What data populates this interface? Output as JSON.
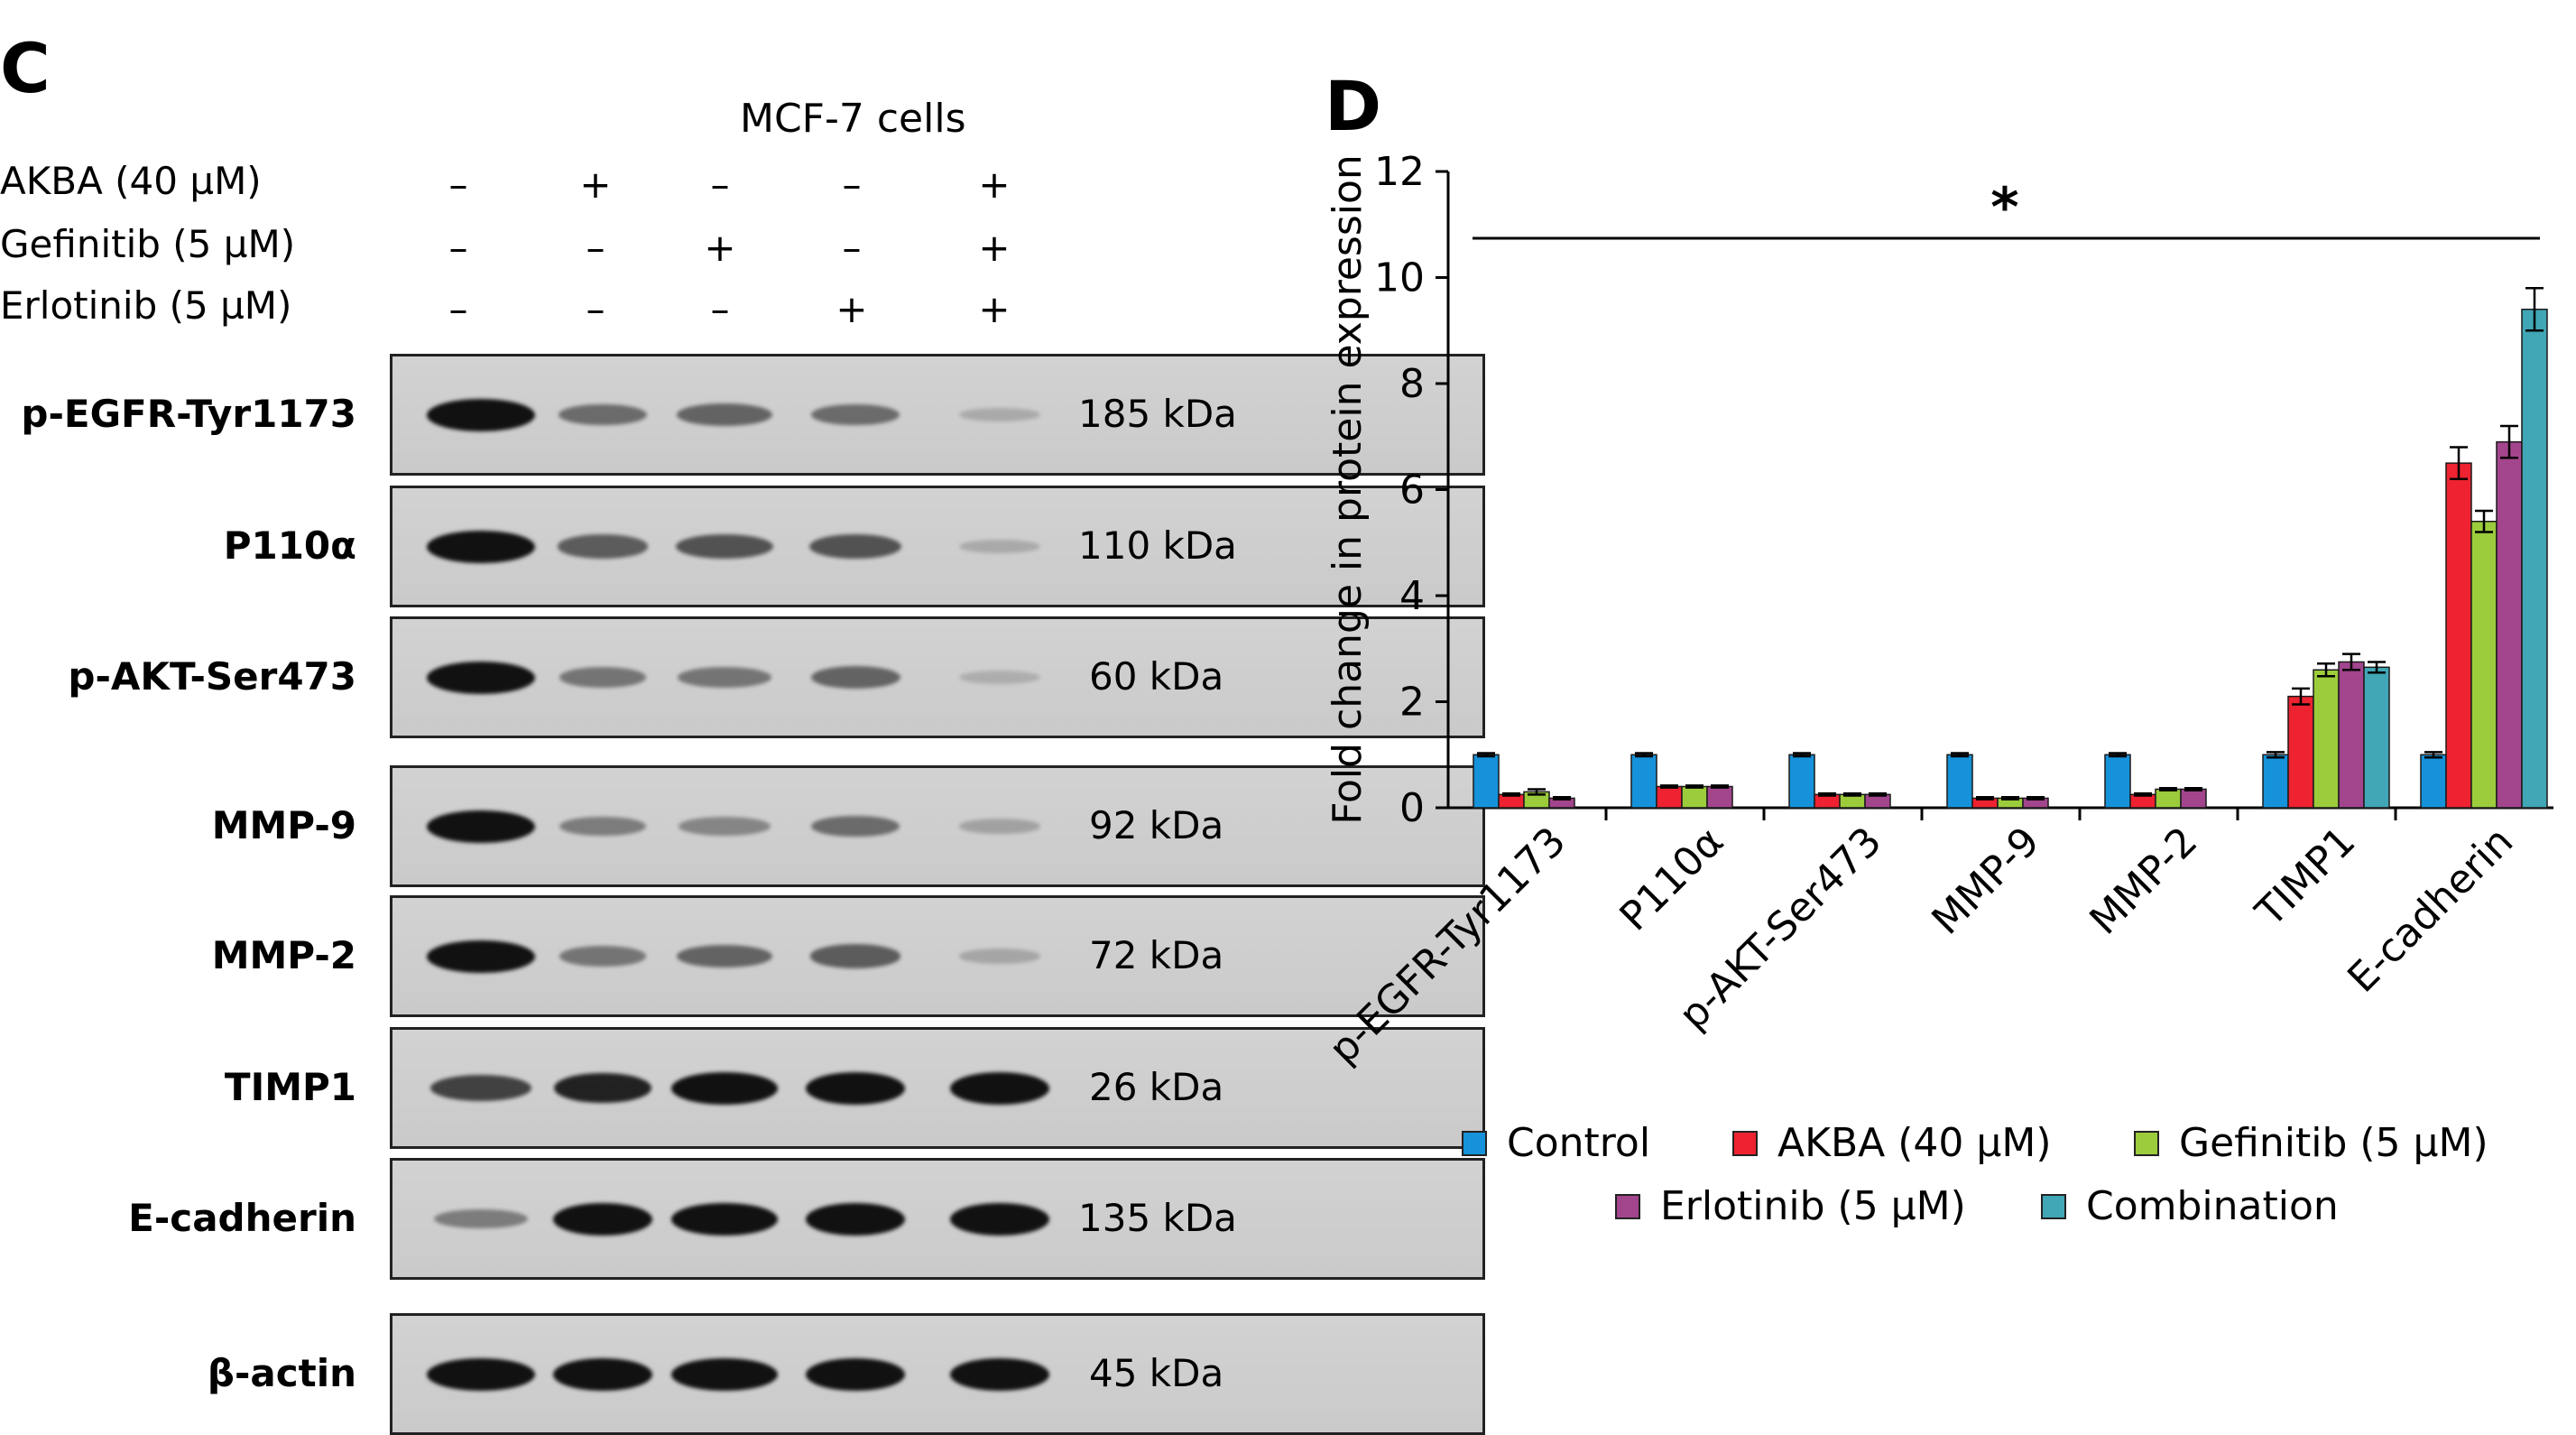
{
  "panel_c": {
    "letter": "C",
    "cells_title": "MCF-7 cells",
    "treatments": [
      {
        "label": "AKBA (40 µM)",
        "signs": [
          "–",
          "+",
          "–",
          "–",
          "+"
        ]
      },
      {
        "label": "Gefinitib (5 µM)",
        "signs": [
          "–",
          "–",
          "+",
          "–",
          "+"
        ]
      },
      {
        "label": "Erlotinib (5 µM)",
        "signs": [
          "–",
          "–",
          "–",
          "+",
          "+"
        ]
      }
    ],
    "blots": [
      {
        "protein": "p-EGFR-Tyr1173",
        "kda": "185 kDa",
        "intensity": [
          1.0,
          0.45,
          0.5,
          0.45,
          0.08
        ]
      },
      {
        "protein": "P110α",
        "kda": "110 kDa",
        "intensity": [
          1.0,
          0.55,
          0.6,
          0.6,
          0.08
        ]
      },
      {
        "protein": "p-AKT-Ser473",
        "kda": "60 kDa",
        "intensity": [
          1.0,
          0.4,
          0.4,
          0.5,
          0.06
        ]
      },
      {
        "protein": "MMP-9",
        "kda": "92 kDa",
        "intensity": [
          1.0,
          0.35,
          0.3,
          0.45,
          0.12
        ]
      },
      {
        "protein": "MMP-2",
        "kda": "72 kDa",
        "intensity": [
          1.0,
          0.4,
          0.5,
          0.55,
          0.1
        ]
      },
      {
        "protein": "TIMP1",
        "kda": "26 kDa",
        "intensity": [
          0.7,
          0.9,
          1.0,
          1.0,
          1.0
        ]
      },
      {
        "protein": "E-cadherin",
        "kda": "135 kDa",
        "intensity": [
          0.35,
          1.0,
          1.0,
          1.0,
          1.0
        ]
      },
      {
        "protein": "β-actin",
        "kda": "45 kDa",
        "intensity": [
          1.0,
          1.0,
          1.0,
          1.0,
          1.0
        ]
      }
    ]
  },
  "panel_d": {
    "letter": "D"
  },
  "chart_data": {
    "type": "bar",
    "title": "",
    "xlabel": "",
    "ylabel": "Fold change in protein expression",
    "ylim": [
      0,
      12
    ],
    "yticks": [
      "0",
      "2",
      "4",
      "6",
      "8",
      "10",
      "12"
    ],
    "grid": false,
    "legend_position": "bottom",
    "significance": "*",
    "categories": [
      "p-EGFR-Tyr1173",
      "P110α",
      "p-AKT-Ser473",
      "MMP-9",
      "MMP-2",
      "TIMP1",
      "E-cadherin"
    ],
    "series": [
      {
        "name": "Control",
        "color": "#1592da",
        "values": [
          1.0,
          1.0,
          1.0,
          1.0,
          1.0,
          1.0,
          1.0
        ],
        "errors": [
          0.03,
          0.03,
          0.03,
          0.03,
          0.03,
          0.05,
          0.05
        ]
      },
      {
        "name": "AKBA (40 µM)",
        "color": "#ee2230",
        "values": [
          0.25,
          0.4,
          0.25,
          0.18,
          0.25,
          2.1,
          6.5
        ],
        "errors": [
          0.02,
          0.02,
          0.02,
          0.02,
          0.02,
          0.15,
          0.3
        ]
      },
      {
        "name": "Gefinitib (5 µM)",
        "color": "#9ccc3c",
        "values": [
          0.3,
          0.4,
          0.25,
          0.18,
          0.35,
          2.6,
          5.4
        ],
        "errors": [
          0.05,
          0.02,
          0.02,
          0.02,
          0.02,
          0.12,
          0.2
        ]
      },
      {
        "name": "Erlotinib (5 µM)",
        "color": "#a2458d",
        "values": [
          0.18,
          0.4,
          0.25,
          0.18,
          0.35,
          2.75,
          6.9
        ],
        "errors": [
          0.02,
          0.02,
          0.02,
          0.02,
          0.02,
          0.15,
          0.3
        ]
      },
      {
        "name": "Combination",
        "color": "#41a6b5",
        "values": [
          0,
          0,
          0,
          0,
          0,
          2.65,
          9.4
        ],
        "errors": [
          0,
          0,
          0,
          0,
          0,
          0.1,
          0.4
        ]
      }
    ]
  }
}
